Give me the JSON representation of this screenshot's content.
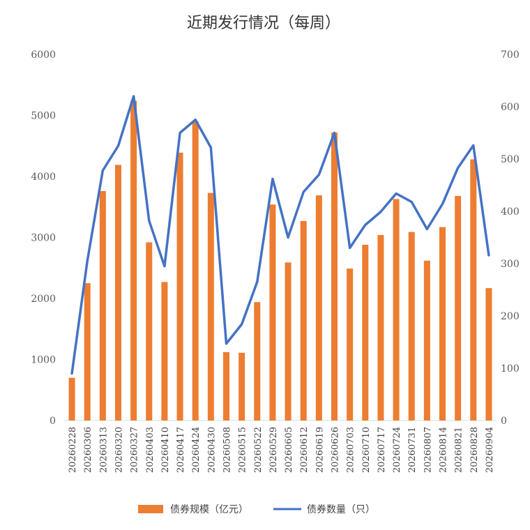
{
  "chart_data": {
    "type": "bar+line",
    "title": "近期发行情况（每周）",
    "categories": [
      "20260228",
      "20260306",
      "20260313",
      "20260320",
      "20260327",
      "20260403",
      "20260410",
      "20260417",
      "20260424",
      "20260430",
      "20260508",
      "20260515",
      "20260522",
      "20260529",
      "20260605",
      "20260612",
      "20260619",
      "20260626",
      "20260703",
      "20260710",
      "20260717",
      "20260724",
      "20260731",
      "20260807",
      "20260814",
      "20260821",
      "20260828",
      "20260904"
    ],
    "series": [
      {
        "name": "债券规模（亿元）",
        "type": "bar",
        "axis": "left",
        "color": "#ED7D31",
        "values": [
          700,
          2250,
          3760,
          4190,
          5240,
          2920,
          2270,
          4390,
          4900,
          3730,
          1120,
          1110,
          1940,
          3540,
          2590,
          3270,
          3690,
          4720,
          2490,
          2880,
          3040,
          3630,
          3090,
          2620,
          3170,
          3680,
          4280,
          2170
        ]
      },
      {
        "name": "债券数量（只）",
        "type": "line",
        "axis": "right",
        "color": "#4472C4",
        "values": [
          90,
          305,
          478,
          525,
          620,
          382,
          295,
          550,
          575,
          522,
          147,
          184,
          265,
          462,
          350,
          437,
          470,
          550,
          330,
          374,
          399,
          434,
          418,
          366,
          414,
          483,
          526,
          316
        ]
      }
    ],
    "y_left": {
      "min": 0,
      "max": 6000,
      "ticks": [
        0,
        1000,
        2000,
        3000,
        4000,
        5000,
        6000
      ]
    },
    "y_right": {
      "min": 0,
      "max": 700,
      "ticks": [
        0,
        100,
        200,
        300,
        400,
        500,
        600,
        700
      ]
    },
    "grid": false,
    "legend_position": "bottom"
  }
}
